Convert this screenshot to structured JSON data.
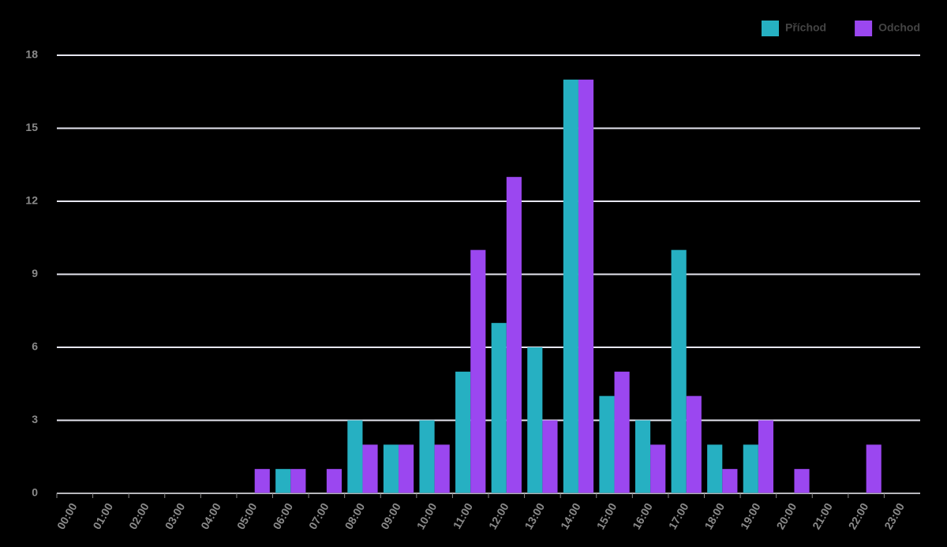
{
  "chart_data": {
    "type": "bar",
    "categories": [
      "00:00",
      "01:00",
      "02:00",
      "03:00",
      "04:00",
      "05:00",
      "06:00",
      "07:00",
      "08:00",
      "09:00",
      "10:00",
      "11:00",
      "12:00",
      "13:00",
      "14:00",
      "15:00",
      "16:00",
      "17:00",
      "18:00",
      "19:00",
      "20:00",
      "21:00",
      "22:00",
      "23:00"
    ],
    "series": [
      {
        "name": "Příchod",
        "color": "#26b0c2",
        "values": [
          0,
          0,
          0,
          0,
          0,
          0,
          1,
          0,
          3,
          2,
          3,
          5,
          7,
          6,
          17,
          4,
          3,
          10,
          2,
          2,
          0,
          0,
          0,
          0
        ]
      },
      {
        "name": "Odchod",
        "color": "#9b47f0",
        "values": [
          0,
          0,
          0,
          0,
          0,
          1,
          1,
          1,
          2,
          2,
          2,
          10,
          13,
          3,
          17,
          5,
          2,
          4,
          1,
          3,
          1,
          0,
          2,
          0
        ]
      }
    ],
    "ylim": [
      0,
      18
    ],
    "yticks": [
      0,
      3,
      6,
      9,
      12,
      15,
      18
    ],
    "grid": true,
    "legend": "top-right"
  }
}
